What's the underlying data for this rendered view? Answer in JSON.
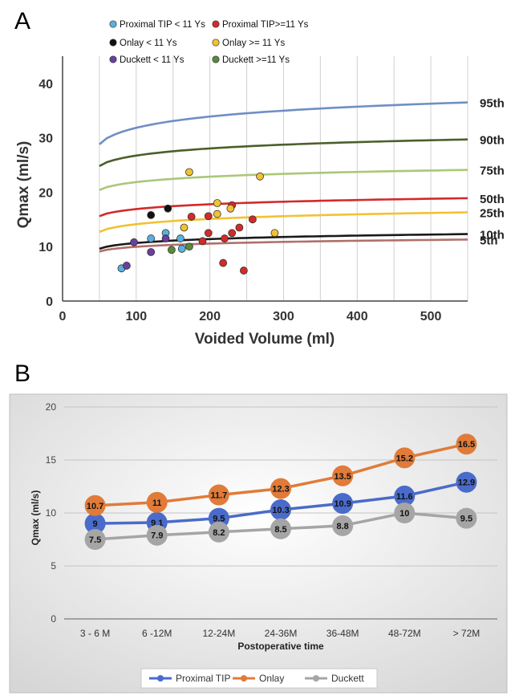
{
  "panel_a": {
    "label": "A",
    "colors": {
      "p95": "#6f8fc4",
      "p90": "#4c5f2a",
      "p75": "#a9c878",
      "p50": "#d32a2a",
      "p25": "#f1c232",
      "p10": "#1a1a1a",
      "p5": "#b0706a"
    }
  },
  "panel_b": {
    "label": "B",
    "colors": {
      "Proximal TIP": "#4a6bc9",
      "Onlay": "#e07b39",
      "Duckett": "#a5a5a5"
    }
  },
  "chart_data": [
    {
      "type": "scatter",
      "title": "",
      "xlabel": "Voided Volume (ml)",
      "ylabel": "Qmax (ml/s)",
      "xlim": [
        0,
        550
      ],
      "ylim": [
        0,
        45
      ],
      "x_ticks": [
        "0",
        "100",
        "200",
        "300",
        "400",
        "500"
      ],
      "y_ticks": [
        "0",
        "10",
        "20",
        "30",
        "40"
      ],
      "grid": "vertical",
      "legend_position": "top-left",
      "series": [
        {
          "name": "Proximal TIP < 11 Ys",
          "color": "#5ab0de",
          "points": [
            [
              80,
              6
            ],
            [
              120,
              11.5
            ],
            [
              140,
              12.5
            ],
            [
              160,
              11.5
            ],
            [
              162,
              9.6
            ]
          ]
        },
        {
          "name": "Proximal TIP>=11 Ys",
          "color": "#d32a2a",
          "points": [
            [
              175,
              15.5
            ],
            [
              198,
              15.6
            ],
            [
              198,
              12.5
            ],
            [
              230,
              17.6
            ],
            [
              258,
              15
            ],
            [
              240,
              13.5
            ],
            [
              230,
              12.5
            ],
            [
              220,
              11.5
            ],
            [
              190,
              11
            ],
            [
              218,
              7
            ],
            [
              246,
              5.6
            ]
          ]
        },
        {
          "name": "Onlay < 11 Ys",
          "color": "#111111",
          "points": [
            [
              120,
              15.8
            ],
            [
              143,
              17
            ]
          ]
        },
        {
          "name": "Onlay >= 11 Ys",
          "color": "#f1c232",
          "points": [
            [
              172,
              23.7
            ],
            [
              268,
              22.9
            ],
            [
              210,
              18
            ],
            [
              228,
              17
            ],
            [
              210,
              16
            ],
            [
              165,
              13.5
            ],
            [
              288,
              12.5
            ]
          ]
        },
        {
          "name": "Duckett < 11 Ys",
          "color": "#6a3fa0",
          "points": [
            [
              87,
              6.5
            ],
            [
              97,
              10.8
            ],
            [
              140,
              11.5
            ],
            [
              120,
              9
            ]
          ]
        },
        {
          "name": "Duckett >=11 Ys",
          "color": "#5a8a3a",
          "points": [
            [
              148,
              9.4
            ],
            [
              172,
              10
            ]
          ]
        }
      ],
      "percentile_curves": [
        {
          "name": "95th",
          "y_at_50": 28.8,
          "y_at_550": 36.5
        },
        {
          "name": "90th",
          "y_at_50": 24.8,
          "y_at_550": 29.7
        },
        {
          "name": "75th",
          "y_at_50": 20.4,
          "y_at_550": 24.1
        },
        {
          "name": "50th",
          "y_at_50": 15.6,
          "y_at_550": 18.9
        },
        {
          "name": "25th",
          "y_at_50": 12.7,
          "y_at_550": 16.3
        },
        {
          "name": "10th",
          "y_at_50": 9.6,
          "y_at_550": 12.3
        },
        {
          "name": "5th",
          "y_at_50": 9.1,
          "y_at_550": 11.3
        }
      ]
    },
    {
      "type": "line",
      "title": "",
      "xlabel": "Postoperative time",
      "ylabel": "Qmax (ml/s)",
      "ylim": [
        0,
        20
      ],
      "y_ticks": [
        "0",
        "5",
        "10",
        "15",
        "20"
      ],
      "grid": "horizontal",
      "legend_position": "bottom",
      "categories": [
        "3 - 6 M",
        "6 -12M",
        "12-24M",
        "24-36M",
        "36-48M",
        "48-72M",
        "> 72M"
      ],
      "series": [
        {
          "name": "Proximal TIP",
          "values": [
            9,
            9.1,
            9.5,
            10.3,
            10.9,
            11.6,
            12.9
          ],
          "labels": [
            "9",
            "9.1",
            "9.5",
            "10.3",
            "10.9",
            "11.6",
            "12.9"
          ]
        },
        {
          "name": "Onlay",
          "values": [
            10.7,
            11,
            11.7,
            12.3,
            13.5,
            15.2,
            16.5
          ],
          "labels": [
            "10.7",
            "11",
            "11.7",
            "12.3",
            "13.5",
            "15.2",
            "16.5"
          ]
        },
        {
          "name": "Duckett",
          "values": [
            7.5,
            7.9,
            8.2,
            8.5,
            8.8,
            10,
            9.5
          ],
          "labels": [
            "7.5",
            "7.9",
            "8.2",
            "8.5",
            "8.8",
            "10",
            "9.5"
          ]
        }
      ]
    }
  ]
}
